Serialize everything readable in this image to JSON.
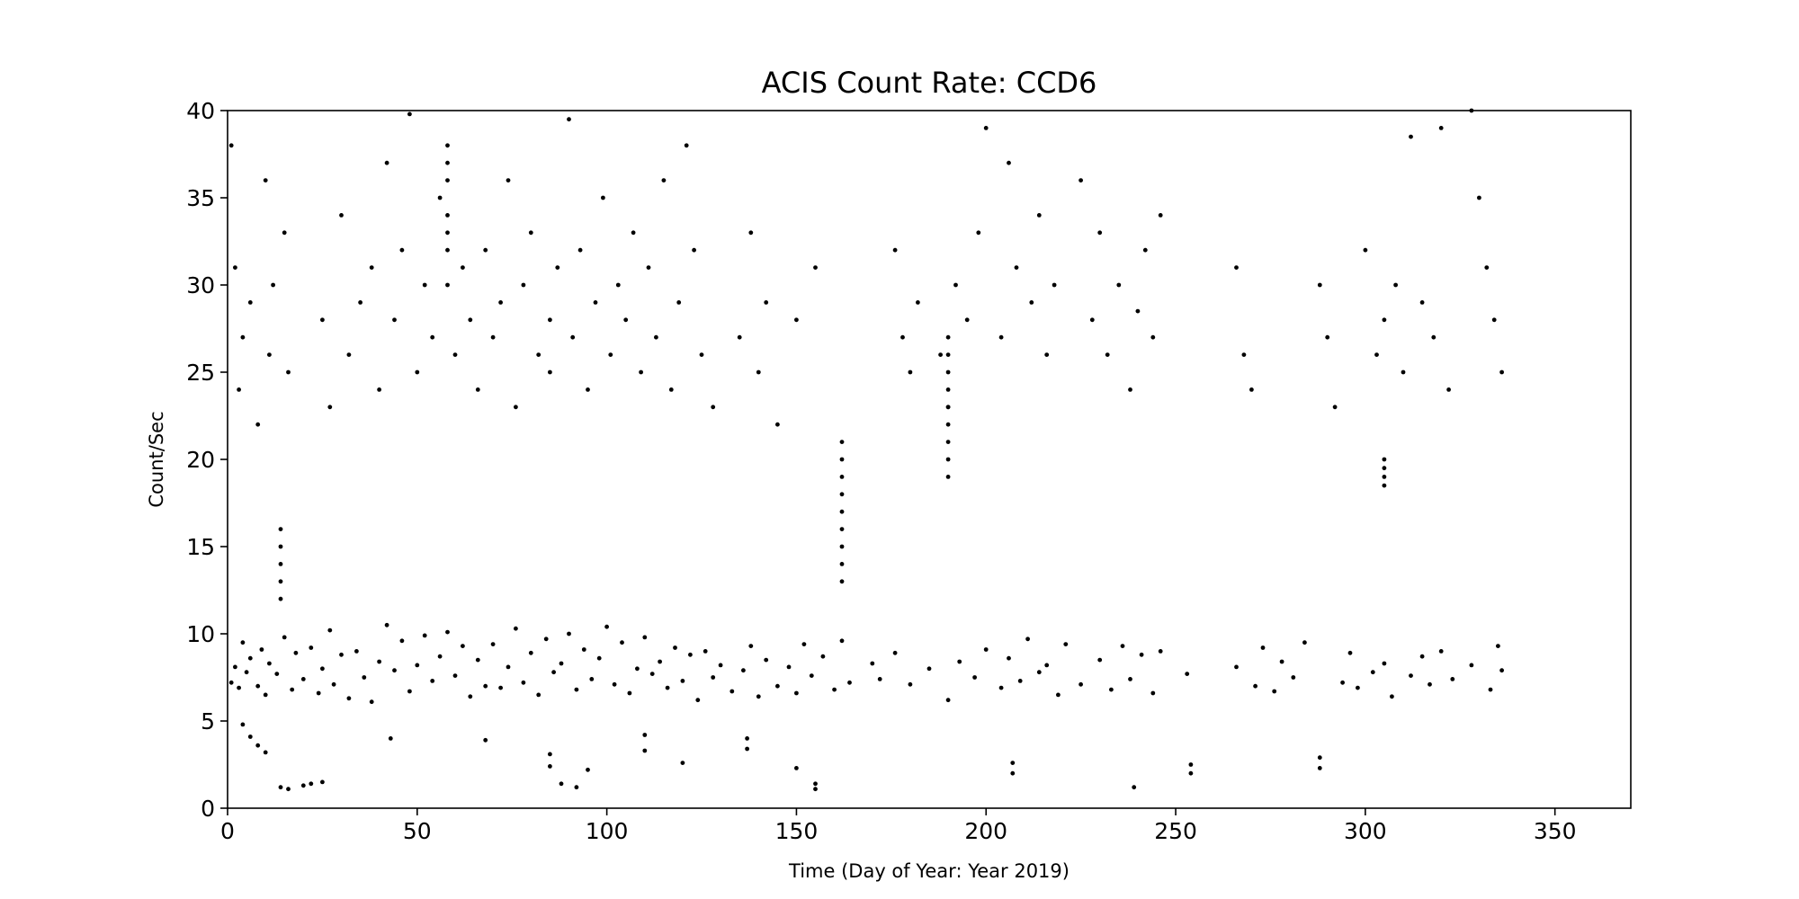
{
  "chart_data": {
    "type": "scatter",
    "title": "ACIS Count Rate: CCD6",
    "xlabel": "Time (Day of Year: Year 2019)",
    "ylabel": "Count/Sec",
    "xlim": [
      0,
      370
    ],
    "ylim": [
      0,
      40
    ],
    "xticks": [
      0,
      50,
      100,
      150,
      200,
      250,
      300,
      350
    ],
    "yticks": [
      0,
      5,
      10,
      15,
      20,
      25,
      30,
      35,
      40
    ],
    "grid": false,
    "legend": "none",
    "marker_color": "#000000",
    "series": [
      {
        "description": "Main band of count rates",
        "points": [
          [
            1,
            7.2
          ],
          [
            2,
            8.1
          ],
          [
            3,
            6.9
          ],
          [
            4,
            9.5
          ],
          [
            5,
            7.8
          ],
          [
            6,
            8.6
          ],
          [
            8,
            7.0
          ],
          [
            9,
            9.1
          ],
          [
            10,
            6.5
          ],
          [
            11,
            8.3
          ],
          [
            13,
            7.7
          ],
          [
            15,
            9.8
          ],
          [
            17,
            6.8
          ],
          [
            18,
            8.9
          ],
          [
            20,
            7.4
          ],
          [
            22,
            9.2
          ],
          [
            24,
            6.6
          ],
          [
            25,
            8.0
          ],
          [
            27,
            10.2
          ],
          [
            28,
            7.1
          ],
          [
            30,
            8.8
          ],
          [
            32,
            6.3
          ],
          [
            34,
            9.0
          ],
          [
            36,
            7.5
          ],
          [
            38,
            6.1
          ],
          [
            40,
            8.4
          ],
          [
            42,
            10.5
          ],
          [
            44,
            7.9
          ],
          [
            46,
            9.6
          ],
          [
            48,
            6.7
          ],
          [
            50,
            8.2
          ],
          [
            52,
            9.9
          ],
          [
            54,
            7.3
          ],
          [
            56,
            8.7
          ],
          [
            58,
            10.1
          ],
          [
            60,
            7.6
          ],
          [
            62,
            9.3
          ],
          [
            64,
            6.4
          ],
          [
            66,
            8.5
          ],
          [
            68,
            7.0
          ],
          [
            70,
            9.4
          ],
          [
            72,
            6.9
          ],
          [
            74,
            8.1
          ],
          [
            76,
            10.3
          ],
          [
            78,
            7.2
          ],
          [
            80,
            8.9
          ],
          [
            82,
            6.5
          ],
          [
            84,
            9.7
          ],
          [
            86,
            7.8
          ],
          [
            88,
            8.3
          ],
          [
            90,
            10.0
          ],
          [
            92,
            6.8
          ],
          [
            94,
            9.1
          ],
          [
            96,
            7.4
          ],
          [
            98,
            8.6
          ],
          [
            100,
            10.4
          ],
          [
            102,
            7.1
          ],
          [
            104,
            9.5
          ],
          [
            106,
            6.6
          ],
          [
            108,
            8.0
          ],
          [
            110,
            9.8
          ],
          [
            112,
            7.7
          ],
          [
            114,
            8.4
          ],
          [
            116,
            6.9
          ],
          [
            118,
            9.2
          ],
          [
            120,
            7.3
          ],
          [
            122,
            8.8
          ],
          [
            124,
            6.2
          ],
          [
            126,
            9.0
          ],
          [
            128,
            7.5
          ],
          [
            130,
            8.2
          ],
          [
            133,
            6.7
          ],
          [
            136,
            7.9
          ],
          [
            138,
            9.3
          ],
          [
            140,
            6.4
          ],
          [
            142,
            8.5
          ],
          [
            145,
            7.0
          ],
          [
            148,
            8.1
          ],
          [
            150,
            6.6
          ],
          [
            152,
            9.4
          ],
          [
            154,
            7.6
          ],
          [
            157,
            8.7
          ],
          [
            160,
            6.8
          ],
          [
            162,
            9.6
          ],
          [
            164,
            7.2
          ],
          [
            170,
            8.3
          ],
          [
            172,
            7.4
          ],
          [
            176,
            8.9
          ],
          [
            180,
            7.1
          ],
          [
            185,
            8.0
          ],
          [
            190,
            6.2
          ],
          [
            193,
            8.4
          ],
          [
            197,
            7.5
          ],
          [
            200,
            9.1
          ],
          [
            204,
            6.9
          ],
          [
            206,
            8.6
          ],
          [
            209,
            7.3
          ],
          [
            211,
            9.7
          ],
          [
            214,
            7.8
          ],
          [
            216,
            8.2
          ],
          [
            219,
            6.5
          ],
          [
            221,
            9.4
          ],
          [
            225,
            7.1
          ],
          [
            230,
            8.5
          ],
          [
            233,
            6.8
          ],
          [
            236,
            9.3
          ],
          [
            238,
            7.4
          ],
          [
            241,
            8.8
          ],
          [
            244,
            6.6
          ],
          [
            246,
            9.0
          ],
          [
            253,
            7.7
          ],
          [
            266,
            8.1
          ],
          [
            271,
            7.0
          ],
          [
            273,
            9.2
          ],
          [
            276,
            6.7
          ],
          [
            278,
            8.4
          ],
          [
            281,
            7.5
          ],
          [
            284,
            9.5
          ],
          [
            294,
            7.2
          ],
          [
            296,
            8.9
          ],
          [
            298,
            6.9
          ],
          [
            302,
            7.8
          ],
          [
            305,
            8.3
          ],
          [
            307,
            6.4
          ],
          [
            312,
            7.6
          ],
          [
            315,
            8.7
          ],
          [
            317,
            7.1
          ],
          [
            320,
            9.0
          ],
          [
            323,
            7.4
          ],
          [
            328,
            8.2
          ],
          [
            333,
            6.8
          ],
          [
            335,
            9.3
          ],
          [
            336,
            7.9
          ]
        ]
      },
      {
        "description": "Scattered high count rates",
        "points": [
          [
            1,
            38
          ],
          [
            2,
            31
          ],
          [
            3,
            24
          ],
          [
            4,
            27
          ],
          [
            6,
            29
          ],
          [
            8,
            22
          ],
          [
            10,
            36
          ],
          [
            11,
            26
          ],
          [
            12,
            30
          ],
          [
            15,
            33
          ],
          [
            16,
            25
          ],
          [
            25,
            28
          ],
          [
            27,
            23
          ],
          [
            30,
            34
          ],
          [
            32,
            26
          ],
          [
            35,
            29
          ],
          [
            38,
            31
          ],
          [
            40,
            24
          ],
          [
            42,
            37
          ],
          [
            44,
            28
          ],
          [
            46,
            32
          ],
          [
            48,
            39.8
          ],
          [
            50,
            25
          ],
          [
            52,
            30
          ],
          [
            54,
            27
          ],
          [
            56,
            35
          ],
          [
            58,
            38
          ],
          [
            58,
            33
          ],
          [
            58,
            30
          ],
          [
            60,
            26
          ],
          [
            62,
            31
          ],
          [
            64,
            28
          ],
          [
            66,
            24
          ],
          [
            68,
            32
          ],
          [
            70,
            27
          ],
          [
            72,
            29
          ],
          [
            74,
            36
          ],
          [
            76,
            23
          ],
          [
            78,
            30
          ],
          [
            80,
            33
          ],
          [
            82,
            26
          ],
          [
            85,
            28
          ],
          [
            85,
            25
          ],
          [
            87,
            31
          ],
          [
            90,
            39.5
          ],
          [
            91,
            27
          ],
          [
            93,
            32
          ],
          [
            95,
            24
          ],
          [
            97,
            29
          ],
          [
            99,
            35
          ],
          [
            101,
            26
          ],
          [
            103,
            30
          ],
          [
            105,
            28
          ],
          [
            107,
            33
          ],
          [
            109,
            25
          ],
          [
            111,
            31
          ],
          [
            113,
            27
          ],
          [
            115,
            36
          ],
          [
            117,
            24
          ],
          [
            119,
            29
          ],
          [
            121,
            38
          ],
          [
            123,
            32
          ],
          [
            125,
            26
          ],
          [
            128,
            23
          ],
          [
            135,
            27
          ],
          [
            138,
            33
          ],
          [
            140,
            25
          ],
          [
            142,
            29
          ],
          [
            145,
            22
          ],
          [
            150,
            28
          ],
          [
            155,
            31
          ],
          [
            176,
            32
          ],
          [
            178,
            27
          ],
          [
            180,
            25
          ],
          [
            182,
            29
          ],
          [
            188,
            26
          ],
          [
            190,
            23
          ],
          [
            192,
            30
          ],
          [
            195,
            28
          ],
          [
            198,
            33
          ],
          [
            200,
            39
          ],
          [
            204,
            27
          ],
          [
            206,
            37
          ],
          [
            208,
            31
          ],
          [
            212,
            29
          ],
          [
            214,
            34
          ],
          [
            216,
            26
          ],
          [
            218,
            30
          ],
          [
            225,
            36
          ],
          [
            228,
            28
          ],
          [
            230,
            33
          ],
          [
            232,
            26
          ],
          [
            235,
            30
          ],
          [
            238,
            24
          ],
          [
            240,
            28.5
          ],
          [
            242,
            32
          ],
          [
            244,
            27
          ],
          [
            246,
            34
          ],
          [
            266,
            31
          ],
          [
            268,
            26
          ],
          [
            270,
            24
          ],
          [
            288,
            30
          ],
          [
            290,
            27
          ],
          [
            292,
            23
          ],
          [
            300,
            32
          ],
          [
            303,
            26
          ],
          [
            305,
            28
          ],
          [
            308,
            30
          ],
          [
            310,
            25
          ],
          [
            312,
            38.5
          ],
          [
            315,
            29
          ],
          [
            318,
            27
          ],
          [
            320,
            39
          ],
          [
            322,
            24
          ],
          [
            328,
            40
          ],
          [
            330,
            35
          ],
          [
            332,
            31
          ],
          [
            334,
            28
          ],
          [
            336,
            25
          ]
        ]
      },
      {
        "description": "Isolated dense columns",
        "points": [
          [
            14,
            16
          ],
          [
            14,
            15
          ],
          [
            14,
            14
          ],
          [
            14,
            13
          ],
          [
            14,
            12
          ],
          [
            58,
            37
          ],
          [
            58,
            36
          ],
          [
            58,
            34
          ],
          [
            58,
            32
          ],
          [
            162,
            21
          ],
          [
            162,
            20
          ],
          [
            162,
            19
          ],
          [
            162,
            18
          ],
          [
            162,
            17
          ],
          [
            162,
            16
          ],
          [
            162,
            15
          ],
          [
            162,
            14
          ],
          [
            162,
            13
          ],
          [
            305,
            20
          ],
          [
            305,
            19.5
          ],
          [
            305,
            19
          ],
          [
            305,
            18.5
          ],
          [
            190,
            27
          ],
          [
            190,
            26
          ],
          [
            190,
            25
          ],
          [
            190,
            24
          ],
          [
            190,
            23
          ],
          [
            190,
            22
          ],
          [
            190,
            21
          ],
          [
            190,
            20
          ],
          [
            190,
            19
          ]
        ]
      },
      {
        "description": "Low count rate points",
        "points": [
          [
            4,
            4.8
          ],
          [
            6,
            4.1
          ],
          [
            8,
            3.6
          ],
          [
            10,
            3.2
          ],
          [
            14,
            1.2
          ],
          [
            16,
            1.1
          ],
          [
            20,
            1.3
          ],
          [
            22,
            1.4
          ],
          [
            25,
            1.5
          ],
          [
            43,
            4.0
          ],
          [
            68,
            3.9
          ],
          [
            85,
            2.4
          ],
          [
            85,
            3.1
          ],
          [
            88,
            1.4
          ],
          [
            92,
            1.2
          ],
          [
            95,
            2.2
          ],
          [
            110,
            4.2
          ],
          [
            110,
            3.3
          ],
          [
            120,
            2.6
          ],
          [
            137,
            3.4
          ],
          [
            137,
            4.0
          ],
          [
            150,
            2.3
          ],
          [
            155,
            1.4
          ],
          [
            155,
            1.1
          ],
          [
            207,
            2.6
          ],
          [
            207,
            2.0
          ],
          [
            239,
            1.2
          ],
          [
            254,
            2.5
          ],
          [
            254,
            2.0
          ],
          [
            288,
            2.9
          ],
          [
            288,
            2.3
          ]
        ]
      }
    ]
  }
}
